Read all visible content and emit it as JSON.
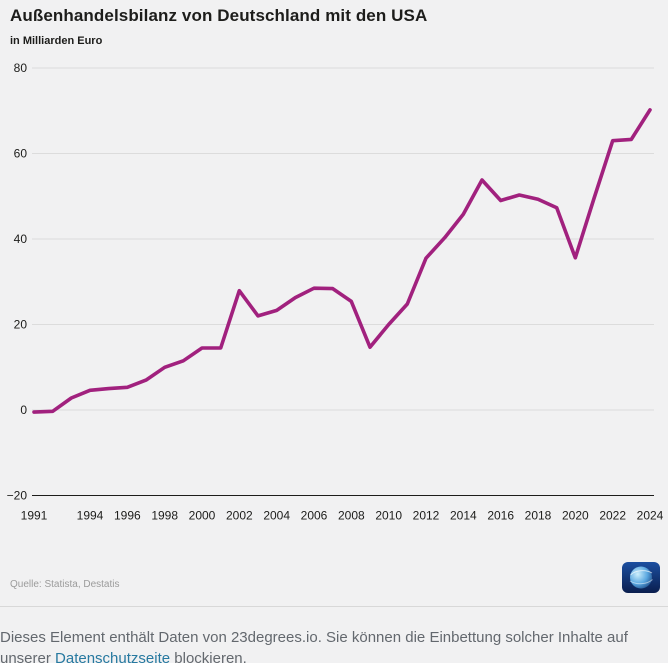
{
  "chart_data": {
    "type": "line",
    "title": "Außenhandelsbilanz von Deutschland mit den USA",
    "subtitle": "in Milliarden Euro",
    "x": [
      1991,
      1992,
      1993,
      1994,
      1995,
      1996,
      1997,
      1998,
      1999,
      2000,
      2001,
      2002,
      2003,
      2004,
      2005,
      2006,
      2007,
      2008,
      2009,
      2010,
      2011,
      2012,
      2013,
      2014,
      2015,
      2016,
      2017,
      2018,
      2019,
      2020,
      2021,
      2022,
      2023,
      2024
    ],
    "values": [
      -0.5,
      -0.3,
      2.8,
      4.6,
      5.0,
      5.3,
      7.0,
      10.0,
      11.5,
      14.5,
      14.5,
      27.9,
      22.0,
      23.3,
      26.3,
      28.5,
      28.4,
      25.4,
      14.7,
      20.0,
      24.8,
      35.5,
      40.3,
      45.8,
      53.8,
      49.0,
      50.3,
      49.3,
      47.3,
      35.6,
      49.5,
      63.0,
      63.3,
      70.2
    ],
    "xticks": [
      1991,
      1994,
      1996,
      1998,
      2000,
      2002,
      2004,
      2006,
      2008,
      2010,
      2012,
      2014,
      2016,
      2018,
      2020,
      2022,
      2024
    ],
    "yticks": [
      -20,
      0,
      20,
      40,
      60,
      80
    ],
    "ylim": [
      -20,
      80
    ],
    "grid": true,
    "legend": "none",
    "line_color": "#a1217e",
    "grid_color": "#dcdcdc",
    "axis_color": "#1d1d1b"
  },
  "source": {
    "label": "Quelle: Statista, Destatis"
  },
  "icons": {
    "logo": "tagesschau-globe-logo"
  },
  "footer": {
    "text_before": "Dieses Element enthält Daten von 23degrees.io. Sie können die Einbettung solcher Inhalte auf unserer ",
    "link_label": "Datenschutzseite",
    "text_after": " blockieren."
  },
  "colors": {
    "background": "#f1f1f2",
    "line": "#a1217e",
    "link": "#2779a0",
    "footer_text": "#63686e"
  }
}
